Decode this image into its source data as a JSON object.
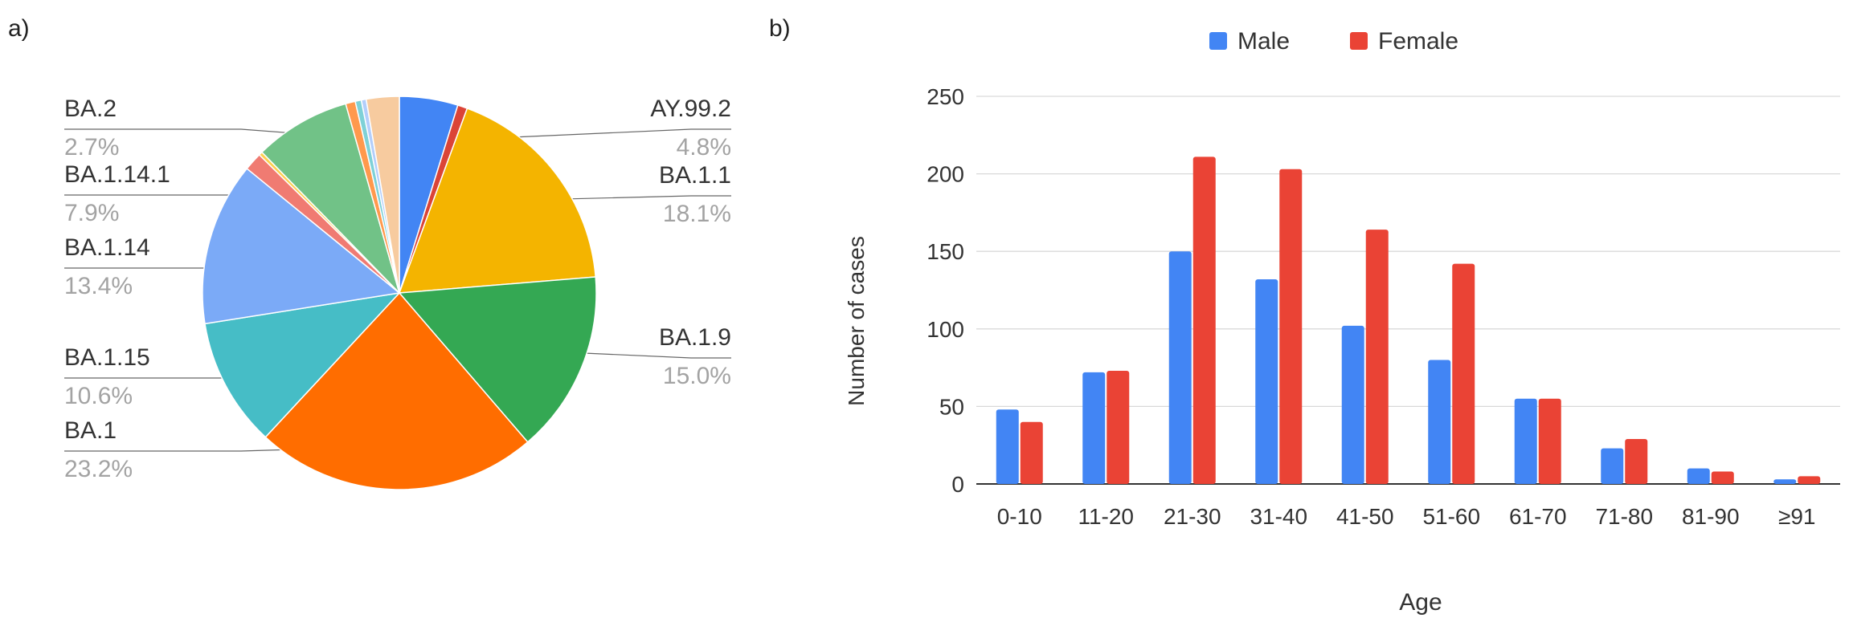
{
  "panels": [
    {
      "panel_label": "a)",
      "chart_data": {
        "type": "pie",
        "title": "",
        "start_angle_deg": 0,
        "direction": "clockwise",
        "slices": [
          {
            "label": "AY.99.2",
            "value": 4.8,
            "display": "4.8%",
            "color": "#4285f4",
            "labeled": true
          },
          {
            "label": "",
            "value": 0.8,
            "display": "",
            "color": "#db4437",
            "labeled": false
          },
          {
            "label": "BA.1.1",
            "value": 18.1,
            "display": "18.1%",
            "color": "#f4b400",
            "labeled": true
          },
          {
            "label": "BA.1.9",
            "value": 15.0,
            "display": "15.0%",
            "color": "#34a853",
            "labeled": true
          },
          {
            "label": "BA.1",
            "value": 23.2,
            "display": "23.2%",
            "color": "#ff6d00",
            "labeled": true
          },
          {
            "label": "BA.1.15",
            "value": 10.6,
            "display": "10.6%",
            "color": "#46bdc6",
            "labeled": true
          },
          {
            "label": "BA.1.14",
            "value": 13.4,
            "display": "13.4%",
            "color": "#7baaf7",
            "labeled": true
          },
          {
            "label": "",
            "value": 1.5,
            "display": "",
            "color": "#f07b72",
            "labeled": false
          },
          {
            "label": "",
            "value": 0.3,
            "display": "",
            "color": "#fcd04f",
            "labeled": false
          },
          {
            "label": "BA.1.14.1",
            "value": 7.9,
            "display": "7.9%",
            "color": "#71c287",
            "labeled": true
          },
          {
            "label": "",
            "value": 0.8,
            "display": "",
            "color": "#ff994d",
            "labeled": false
          },
          {
            "label": "",
            "value": 0.5,
            "display": "",
            "color": "#7ed1d7",
            "labeled": false
          },
          {
            "label": "",
            "value": 0.4,
            "display": "",
            "color": "#b3cefb",
            "labeled": false
          },
          {
            "label": "BA.2",
            "value": 2.7,
            "display": "2.7%",
            "color": "#f7cb9f",
            "labeled": true
          }
        ]
      }
    },
    {
      "panel_label": "b)",
      "chart_data": {
        "type": "bar",
        "title": "",
        "xlabel": "Age",
        "ylabel": "Number of cases",
        "ylim": [
          0,
          250
        ],
        "yticks": [
          0,
          50,
          100,
          150,
          200,
          250
        ],
        "grid": true,
        "legend_position": "top-center",
        "categories": [
          "0-10",
          "11-20",
          "21-30",
          "31-40",
          "41-50",
          "51-60",
          "61-70",
          "71-80",
          "81-90",
          "≥91"
        ],
        "series": [
          {
            "name": "Male",
            "color": "#4285f4",
            "values": [
              48,
              72,
              150,
              132,
              102,
              80,
              55,
              23,
              10,
              3
            ]
          },
          {
            "name": "Female",
            "color": "#ea4335",
            "values": [
              40,
              73,
              211,
              203,
              164,
              142,
              55,
              29,
              8,
              5
            ]
          }
        ]
      }
    }
  ]
}
